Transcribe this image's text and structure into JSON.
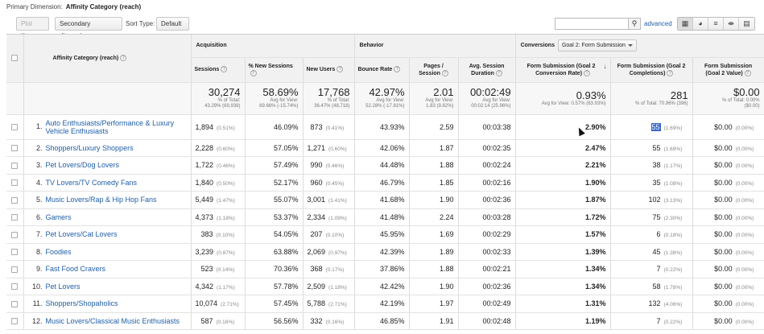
{
  "primary_dimension": {
    "label": "Primary Dimension:",
    "value": "Affinity Category (reach)"
  },
  "toolbar": {
    "plot_rows": "Plot Rows",
    "secondary_dimension": "Secondary dimension",
    "sort_type_label": "Sort Type:",
    "sort_type_value": "Default",
    "search_placeholder": "",
    "advanced": "advanced",
    "view_icons": [
      "table-view-icon",
      "pie-view-icon",
      "performance-view-icon",
      "comparison-view-icon",
      "pivot-view-icon"
    ]
  },
  "table": {
    "dimension_header": "Affinity Category (reach)",
    "groups": {
      "acquisition": "Acquisition",
      "behavior": "Behavior",
      "conversions": "Conversions",
      "goal_select": "Goal 2: Form Submission"
    },
    "columns": {
      "sessions": "Sessions",
      "new_sessions": "% New Sessions",
      "new_users": "New Users",
      "bounce_rate": "Bounce Rate",
      "pages_session_1": "Pages /",
      "pages_session_2": "Session",
      "avg_duration_1": "Avg. Session",
      "avg_duration_2": "Duration",
      "conv_rate_1": "Form Submission (Goal 2",
      "conv_rate_2": "Conversion Rate)",
      "completions_1": "Form Submission (Goal 2",
      "completions_2": "Completions)",
      "value_1": "Form Submission",
      "value_2": "(Goal 2 Value)"
    },
    "totals": {
      "sessions": {
        "big": "30,274",
        "s1": "% of Total:",
        "s2": "43.29% (69,939)"
      },
      "new_sessions": {
        "big": "58.69%",
        "s1": "Avg for View:",
        "s2": "69.66% (-15.74%)"
      },
      "new_users": {
        "big": "17,768",
        "s1": "% of Total:",
        "s2": "36.47% (48,718)"
      },
      "bounce_rate": {
        "big": "42.97%",
        "s1": "Avg for View:",
        "s2": "52.28% (-17.81%)"
      },
      "pages_session": {
        "big": "2.01",
        "s1": "Avg for View:",
        "s2": "1.83 (9.82%)"
      },
      "avg_duration": {
        "big": "00:02:49",
        "s1": "Avg for View:",
        "s2": "00:02:14 (25.96%)"
      },
      "conv_rate": {
        "big": "0.93%",
        "s1": "Avg for View: 0.57% (63.93%)",
        "s2": ""
      },
      "completions": {
        "big": "281",
        "s1": "% of Total: 70.96% (396)",
        "s2": ""
      },
      "value": {
        "big": "$0.00",
        "s1": "% of Total: 0.00%",
        "s2": "($0.00)"
      }
    },
    "rows": [
      {
        "num": "1.",
        "name": "Auto Enthusiasts/Performance & Luxury Vehicle Enthusiasts",
        "sessions": "1,894",
        "sessions_pct": "(0.51%)",
        "new_sessions": "46.09%",
        "new_users": "873",
        "new_users_pct": "(0.41%)",
        "bounce": "43.93%",
        "pages": "2.59",
        "duration": "00:03:38",
        "conv_rate": "2.90%",
        "completions": "55",
        "completions_pct": "(1.69%)",
        "value": "$0.00",
        "value_pct": "(0.00%)"
      },
      {
        "num": "2.",
        "name": "Shoppers/Luxury Shoppers",
        "sessions": "2,228",
        "sessions_pct": "(0.60%)",
        "new_sessions": "57.05%",
        "new_users": "1,271",
        "new_users_pct": "(0.60%)",
        "bounce": "42.06%",
        "pages": "1.87",
        "duration": "00:02:35",
        "conv_rate": "2.47%",
        "completions": "55",
        "completions_pct": "(1.69%)",
        "value": "$0.00",
        "value_pct": "(0.00%)"
      },
      {
        "num": "3.",
        "name": "Pet Lovers/Dog Lovers",
        "sessions": "1,722",
        "sessions_pct": "(0.46%)",
        "new_sessions": "57.49%",
        "new_users": "990",
        "new_users_pct": "(0.46%)",
        "bounce": "44.48%",
        "pages": "1.88",
        "duration": "00:02:24",
        "conv_rate": "2.21%",
        "completions": "38",
        "completions_pct": "(1.17%)",
        "value": "$0.00",
        "value_pct": "(0.00%)"
      },
      {
        "num": "4.",
        "name": "TV Lovers/TV Comedy Fans",
        "sessions": "1,840",
        "sessions_pct": "(0.50%)",
        "new_sessions": "52.17%",
        "new_users": "960",
        "new_users_pct": "(0.45%)",
        "bounce": "46.79%",
        "pages": "1.85",
        "duration": "00:02:16",
        "conv_rate": "1.90%",
        "completions": "35",
        "completions_pct": "(1.08%)",
        "value": "$0.00",
        "value_pct": "(0.00%)"
      },
      {
        "num": "5.",
        "name": "Music Lovers/Rap & Hip Hop Fans",
        "sessions": "5,449",
        "sessions_pct": "(1.47%)",
        "new_sessions": "55.07%",
        "new_users": "3,001",
        "new_users_pct": "(1.41%)",
        "bounce": "41.68%",
        "pages": "1.90",
        "duration": "00:02:36",
        "conv_rate": "1.87%",
        "completions": "102",
        "completions_pct": "(3.13%)",
        "value": "$0.00",
        "value_pct": "(0.00%)"
      },
      {
        "num": "6.",
        "name": "Gamers",
        "sessions": "4,373",
        "sessions_pct": "(1.18%)",
        "new_sessions": "53.37%",
        "new_users": "2,334",
        "new_users_pct": "(1.09%)",
        "bounce": "41.48%",
        "pages": "2.24",
        "duration": "00:03:28",
        "conv_rate": "1.72%",
        "completions": "75",
        "completions_pct": "(2.30%)",
        "value": "$0.00",
        "value_pct": "(0.00%)"
      },
      {
        "num": "7.",
        "name": "Pet Lovers/Cat Lovers",
        "sessions": "383",
        "sessions_pct": "(0.10%)",
        "new_sessions": "54.05%",
        "new_users": "207",
        "new_users_pct": "(0.10%)",
        "bounce": "45.95%",
        "pages": "1.69",
        "duration": "00:02:29",
        "conv_rate": "1.57%",
        "completions": "6",
        "completions_pct": "(0.18%)",
        "value": "$0.00",
        "value_pct": "(0.00%)"
      },
      {
        "num": "8.",
        "name": "Foodies",
        "sessions": "3,239",
        "sessions_pct": "(0.87%)",
        "new_sessions": "63.88%",
        "new_users": "2,069",
        "new_users_pct": "(0.97%)",
        "bounce": "42.39%",
        "pages": "1.89",
        "duration": "00:02:33",
        "conv_rate": "1.39%",
        "completions": "45",
        "completions_pct": "(1.38%)",
        "value": "$0.00",
        "value_pct": "(0.00%)"
      },
      {
        "num": "9.",
        "name": "Fast Food Cravers",
        "sessions": "523",
        "sessions_pct": "(0.14%)",
        "new_sessions": "70.36%",
        "new_users": "368",
        "new_users_pct": "(0.17%)",
        "bounce": "37.86%",
        "pages": "1.88",
        "duration": "00:02:21",
        "conv_rate": "1.34%",
        "completions": "7",
        "completions_pct": "(0.22%)",
        "value": "$0.00",
        "value_pct": "(0.00%)"
      },
      {
        "num": "10.",
        "name": "Pet Lovers",
        "sessions": "4,342",
        "sessions_pct": "(1.17%)",
        "new_sessions": "57.78%",
        "new_users": "2,509",
        "new_users_pct": "(1.18%)",
        "bounce": "42.42%",
        "pages": "1.90",
        "duration": "00:02:36",
        "conv_rate": "1.34%",
        "completions": "58",
        "completions_pct": "(1.78%)",
        "value": "$0.00",
        "value_pct": "(0.00%)"
      },
      {
        "num": "11.",
        "name": "Shoppers/Shopaholics",
        "sessions": "10,074",
        "sessions_pct": "(2.71%)",
        "new_sessions": "57.45%",
        "new_users": "5,788",
        "new_users_pct": "(2.71%)",
        "bounce": "42.19%",
        "pages": "1.97",
        "duration": "00:02:49",
        "conv_rate": "1.31%",
        "completions": "132",
        "completions_pct": "(4.06%)",
        "value": "$0.00",
        "value_pct": "(0.00%)"
      },
      {
        "num": "12.",
        "name": "Music Lovers/Classical Music Enthusiasts",
        "sessions": "587",
        "sessions_pct": "(0.16%)",
        "new_sessions": "56.56%",
        "new_users": "332",
        "new_users_pct": "(0.16%)",
        "bounce": "46.85%",
        "pages": "1.91",
        "duration": "00:02:48",
        "conv_rate": "1.19%",
        "completions": "7",
        "completions_pct": "(0.22%)",
        "value": "$0.00",
        "value_pct": "(0.00%)"
      }
    ]
  }
}
